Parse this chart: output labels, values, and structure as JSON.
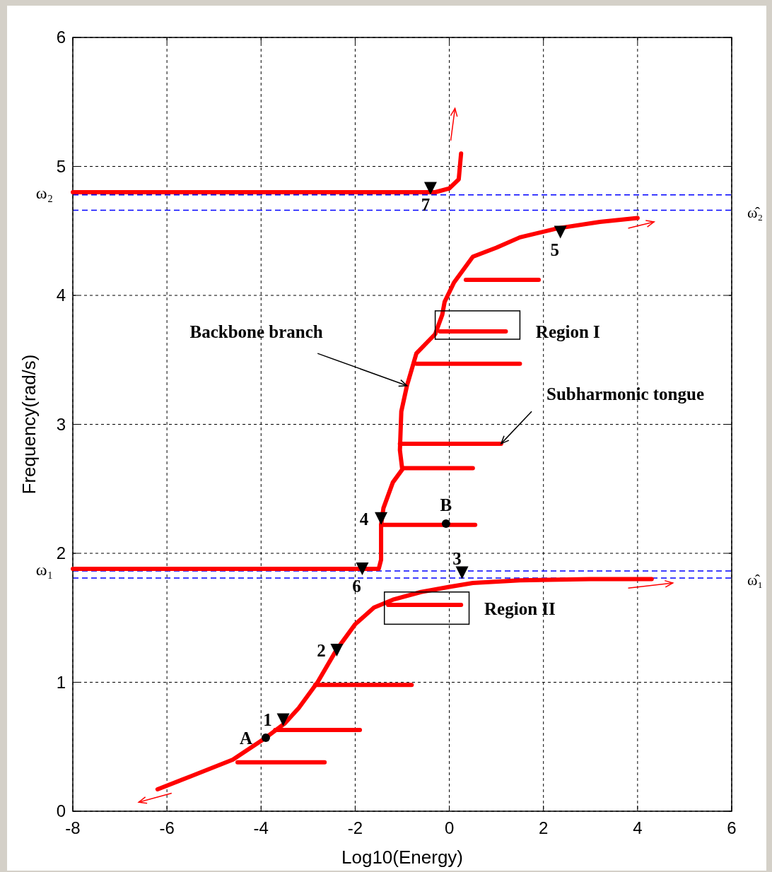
{
  "chart_data": {
    "type": "line",
    "xlabel": "Log10(Energy)",
    "ylabel": "Frequency(rad/s)",
    "xlim": [
      -8,
      6
    ],
    "xticks": [
      -8,
      -6,
      -4,
      -2,
      0,
      2,
      4,
      6
    ],
    "ylim": [
      0,
      6
    ],
    "yticks": [
      0,
      1,
      2,
      3,
      4,
      5,
      6
    ],
    "grid": true,
    "line_style": "solid",
    "series": [
      {
        "color": "#ff0000",
        "x": [
          -6.2,
          -5.5,
          -4.6,
          -3.9,
          -3.5,
          -3.2,
          -2.8,
          -2.4,
          -2.0,
          -1.6,
          -1.2,
          -0.6,
          0,
          0.5,
          1.5,
          3,
          4.3
        ],
        "values": [
          0.17,
          0.27,
          0.4,
          0.57,
          0.68,
          0.8,
          1.0,
          1.25,
          1.45,
          1.58,
          1.64,
          1.7,
          1.74,
          1.77,
          1.79,
          1.8,
          1.8
        ]
      },
      {
        "color": "#ff0000",
        "x": [
          -4.5,
          -2.65
        ],
        "values": [
          0.38,
          0.38
        ]
      },
      {
        "color": "#ff0000",
        "x": [
          -3.7,
          -1.9
        ],
        "values": [
          0.63,
          0.63
        ]
      },
      {
        "color": "#ff0000",
        "x": [
          -2.85,
          -0.8
        ],
        "values": [
          0.98,
          0.98
        ]
      },
      {
        "color": "#ff0000",
        "x": [
          -1.3,
          0.25
        ],
        "values": [
          1.6,
          1.6
        ]
      },
      {
        "color": "#ff0000",
        "x": [
          -8,
          -1.5,
          -1.45,
          -1.45,
          -1.4,
          -1.2,
          -1.0,
          -1.05,
          -1.02,
          -0.9,
          -0.7,
          -0.3,
          -0.15,
          -0.1,
          0.1,
          0.3,
          0.5,
          1.0,
          1.5,
          2.3,
          3.2,
          4.0
        ],
        "values": [
          1.88,
          1.88,
          1.95,
          2.22,
          2.35,
          2.55,
          2.65,
          2.8,
          3.1,
          3.3,
          3.55,
          3.7,
          3.85,
          3.95,
          4.1,
          4.2,
          4.3,
          4.37,
          4.45,
          4.52,
          4.57,
          4.6
        ]
      },
      {
        "color": "#ff0000",
        "x": [
          -1.45,
          0.55
        ],
        "values": [
          2.22,
          2.22
        ]
      },
      {
        "color": "#ff0000",
        "x": [
          -1.0,
          0.5
        ],
        "values": [
          2.66,
          2.66
        ]
      },
      {
        "color": "#ff0000",
        "x": [
          -1.05,
          1.1
        ],
        "values": [
          2.85,
          2.85
        ]
      },
      {
        "color": "#ff0000",
        "x": [
          -0.7,
          1.5
        ],
        "values": [
          3.47,
          3.47
        ]
      },
      {
        "color": "#ff0000",
        "x": [
          -0.2,
          1.2
        ],
        "values": [
          3.72,
          3.72
        ]
      },
      {
        "color": "#ff0000",
        "x": [
          0.35,
          1.9
        ],
        "values": [
          4.12,
          4.12
        ]
      },
      {
        "color": "#ff0000",
        "x": [
          -8,
          -0.3,
          0,
          0.2,
          0.25
        ],
        "values": [
          4.8,
          4.8,
          4.83,
          4.9,
          5.1
        ]
      },
      {
        "type": "scatter",
        "marker": "triangle",
        "color": "#000000",
        "x": [
          -3.53,
          -2.39,
          0.27,
          -1.45,
          2.36,
          -1.85,
          -0.4
        ],
        "values": [
          0.71,
          1.25,
          1.85,
          2.27,
          4.49,
          1.88,
          4.83
        ]
      },
      {
        "type": "scatter",
        "marker": "circle",
        "color": "#000000",
        "x": [
          -3.9,
          -0.07
        ],
        "values": [
          0.57,
          2.23
        ]
      }
    ],
    "ref_lines": [
      {
        "axis": "y",
        "value": 1.863,
        "color": "#0000ff",
        "line_style": "dashed"
      },
      {
        "axis": "y",
        "value": 1.808,
        "label": "ω̂₁",
        "color": "#0000ff",
        "line_style": "dashed"
      },
      {
        "axis": "y",
        "value": 4.78,
        "color": "#0000ff",
        "line_style": "dashed"
      },
      {
        "axis": "y",
        "value": 4.66,
        "label": "ω̂₂",
        "color": "#0000ff",
        "line_style": "dashed"
      }
    ],
    "annotations": [
      {
        "text": "ω₁",
        "x": -8,
        "y": 1.88
      },
      {
        "text": "ω₂",
        "x": -8,
        "y": 4.8
      },
      {
        "text": "1",
        "x": -3.53,
        "y": 0.71
      },
      {
        "text": "2",
        "x": -2.39,
        "y": 1.25
      },
      {
        "text": "3",
        "x": 0.27,
        "y": 1.85
      },
      {
        "text": "4",
        "x": -1.45,
        "y": 2.27
      },
      {
        "text": "5",
        "x": 2.36,
        "y": 4.49
      },
      {
        "text": "6",
        "x": -1.85,
        "y": 1.88
      },
      {
        "text": "7",
        "x": -0.4,
        "y": 4.83
      },
      {
        "text": "A",
        "x": -3.9,
        "y": 0.57
      },
      {
        "text": "B",
        "x": -0.07,
        "y": 2.23
      },
      {
        "text": "Backbone branch",
        "x": -0.9,
        "y": 3.3
      },
      {
        "text": "Subharmonic tongue",
        "x": 1.1,
        "y": 2.85
      },
      "Region I",
      "Region II"
    ]
  }
}
